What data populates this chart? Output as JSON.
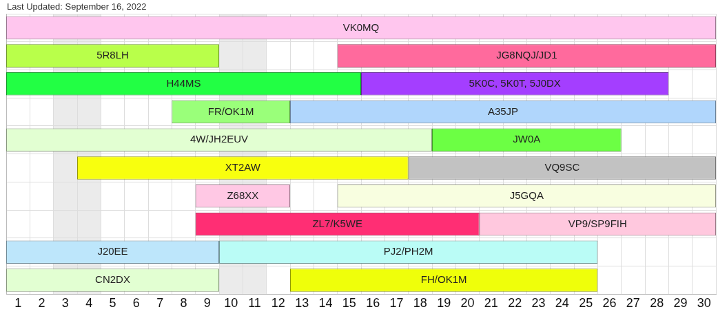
{
  "chart_data": {
    "type": "bar",
    "title": "Last Updated: September 16, 2022",
    "orientation": "horizontal",
    "categories": [
      null,
      null,
      null,
      null,
      null,
      null,
      null,
      null,
      null,
      null
    ],
    "series": [
      {
        "name": "VK0MQ",
        "color": "#ffc6ee",
        "base": [
          0.5,
          null,
          null,
          null,
          null,
          null,
          null,
          null,
          null,
          null
        ],
        "values": [
          30,
          null,
          null,
          null,
          null,
          null,
          null,
          null,
          null,
          null
        ]
      },
      {
        "name": "5R8LH",
        "color": "#b9ff4a",
        "base": [
          null,
          0.5,
          null,
          null,
          null,
          null,
          null,
          null,
          null,
          null
        ],
        "values": [
          null,
          9,
          null,
          null,
          null,
          null,
          null,
          null,
          null,
          null
        ]
      },
      {
        "name": "JG8NQJ/JD1",
        "color": "#ff6a9d",
        "base": [
          null,
          14.5,
          null,
          null,
          null,
          null,
          null,
          null,
          null,
          null
        ],
        "values": [
          null,
          16,
          null,
          null,
          null,
          null,
          null,
          null,
          null,
          null
        ]
      },
      {
        "name": "H44MS",
        "color": "#22ff44",
        "base": [
          null,
          null,
          0.5,
          null,
          null,
          null,
          null,
          null,
          null,
          null
        ],
        "values": [
          null,
          null,
          15,
          null,
          null,
          null,
          null,
          null,
          null,
          null
        ]
      },
      {
        "name": "5K0C, 5K0T, 5J0DX",
        "color": "#a43eff",
        "base": [
          null,
          null,
          15.5,
          null,
          null,
          null,
          null,
          null,
          null,
          null
        ],
        "values": [
          null,
          null,
          13,
          null,
          null,
          null,
          null,
          null,
          null,
          null
        ]
      },
      {
        "name": "FR/OK1M",
        "color": "#9aff7a",
        "base": [
          null,
          null,
          null,
          7.5,
          null,
          null,
          null,
          null,
          null,
          null
        ],
        "values": [
          null,
          null,
          null,
          5,
          null,
          null,
          null,
          null,
          null,
          null
        ]
      },
      {
        "name": "A35JP",
        "color": "#b0d6fc",
        "base": [
          null,
          null,
          null,
          12.5,
          null,
          null,
          null,
          null,
          null,
          null
        ],
        "values": [
          null,
          null,
          null,
          18,
          null,
          null,
          null,
          null,
          null,
          null
        ]
      },
      {
        "name": "4W/JH2EUV",
        "color": "#e2ffd2",
        "base": [
          null,
          null,
          null,
          null,
          0.5,
          null,
          null,
          null,
          null,
          null
        ],
        "values": [
          null,
          null,
          null,
          null,
          18,
          null,
          null,
          null,
          null,
          null
        ]
      },
      {
        "name": "JW0A",
        "color": "#6cff44",
        "base": [
          null,
          null,
          null,
          null,
          18.5,
          null,
          null,
          null,
          null,
          null
        ],
        "values": [
          null,
          null,
          null,
          null,
          8,
          null,
          null,
          null,
          null,
          null
        ]
      },
      {
        "name": "XT2AW",
        "color": "#f8ff0e",
        "base": [
          null,
          null,
          null,
          null,
          null,
          3.5,
          null,
          null,
          null,
          null
        ],
        "values": [
          null,
          null,
          null,
          null,
          null,
          14,
          null,
          null,
          null,
          null
        ]
      },
      {
        "name": "VQ9SC",
        "color": "#c2c2c2",
        "base": [
          null,
          null,
          null,
          null,
          null,
          17.5,
          null,
          null,
          null,
          null
        ],
        "values": [
          null,
          null,
          null,
          null,
          null,
          13,
          null,
          null,
          null,
          null
        ]
      },
      {
        "name": "Z68XX",
        "color": "#ffc8e4",
        "base": [
          null,
          null,
          null,
          null,
          null,
          null,
          8.5,
          null,
          null,
          null
        ],
        "values": [
          null,
          null,
          null,
          null,
          null,
          null,
          4,
          null,
          null,
          null
        ]
      },
      {
        "name": "J5GQA",
        "color": "#f8fee0",
        "base": [
          null,
          null,
          null,
          null,
          null,
          null,
          14.5,
          null,
          null,
          null
        ],
        "values": [
          null,
          null,
          null,
          null,
          null,
          null,
          16,
          null,
          null,
          null
        ]
      },
      {
        "name": "ZL7/K5WE",
        "color": "#ff2e74",
        "base": [
          null,
          null,
          null,
          null,
          null,
          null,
          null,
          8.5,
          null,
          null
        ],
        "values": [
          null,
          null,
          null,
          null,
          null,
          null,
          null,
          12,
          null,
          null
        ]
      },
      {
        "name": "VP9/SP9FIH",
        "color": "#ffc8de",
        "base": [
          null,
          null,
          null,
          null,
          null,
          null,
          null,
          20.5,
          null,
          null
        ],
        "values": [
          null,
          null,
          null,
          null,
          null,
          null,
          null,
          10,
          null,
          null
        ]
      },
      {
        "name": "J20EE",
        "color": "#bde6fb",
        "base": [
          null,
          null,
          null,
          null,
          null,
          null,
          null,
          null,
          0.5,
          null
        ],
        "values": [
          null,
          null,
          null,
          null,
          null,
          null,
          null,
          null,
          9,
          null
        ]
      },
      {
        "name": "PJ2/PH2M",
        "color": "#bafcf6",
        "base": [
          null,
          null,
          null,
          null,
          null,
          null,
          null,
          null,
          9.5,
          null
        ],
        "values": [
          null,
          null,
          null,
          null,
          null,
          null,
          null,
          null,
          16,
          null
        ]
      },
      {
        "name": "CN2DX",
        "color": "#e2ffd2",
        "base": [
          null,
          null,
          null,
          null,
          null,
          null,
          null,
          null,
          null,
          0.5
        ],
        "values": [
          null,
          null,
          null,
          null,
          null,
          null,
          null,
          null,
          null,
          9
        ]
      },
      {
        "name": "FH/OK1M",
        "color": "#efff0a",
        "base": [
          null,
          null,
          null,
          null,
          null,
          null,
          null,
          null,
          null,
          12.5
        ],
        "values": [
          null,
          null,
          null,
          null,
          null,
          null,
          null,
          null,
          null,
          13
        ]
      }
    ],
    "xlim": [
      0.5,
      30.5
    ],
    "xticks": [
      {
        "value": 0.5,
        "label": null
      },
      1,
      {
        "value": 1.5,
        "label": null
      },
      2,
      {
        "value": 2.5,
        "label": null
      },
      3,
      {
        "value": 3.5,
        "label": null
      },
      4,
      {
        "value": 4.5,
        "label": null
      },
      5,
      {
        "value": 5.5,
        "label": null
      },
      6,
      {
        "value": 6.5,
        "label": null
      },
      7,
      {
        "value": 7.5,
        "label": null
      },
      8,
      {
        "value": 8.5,
        "label": null
      },
      9,
      {
        "value": 9.5,
        "label": null
      },
      10,
      {
        "value": 10.5,
        "label": null
      },
      11,
      {
        "value": 11.5,
        "label": null
      },
      12,
      {
        "value": 12.5,
        "label": null
      },
      13,
      {
        "value": 13.5,
        "label": null
      },
      14,
      {
        "value": 14.5,
        "label": null
      },
      15,
      {
        "value": 15.5,
        "label": null
      },
      16,
      {
        "value": 16.5,
        "label": null
      },
      17,
      {
        "value": 17.5,
        "label": null
      },
      18,
      {
        "value": 18.5,
        "label": null
      },
      19,
      {
        "value": 19.5,
        "label": null
      },
      20,
      {
        "value": 20.5,
        "label": null
      },
      21,
      {
        "value": 21.5,
        "label": null
      },
      22,
      {
        "value": 22.5,
        "label": null
      },
      23,
      {
        "value": 23.5,
        "label": null
      },
      24,
      {
        "value": 24.5,
        "label": null
      },
      25,
      {
        "value": 25.5,
        "label": null
      },
      26,
      {
        "value": 26.5,
        "label": null
      },
      27,
      {
        "value": 27.5,
        "label": null
      },
      28,
      {
        "value": 28.5,
        "label": null
      },
      29,
      {
        "value": 29.5,
        "label": null
      },
      30,
      {
        "value": 30.5,
        "label": null
      }
    ],
    "bands": [
      {
        "axis": "x",
        "from": 2.5,
        "to": 4.5,
        "color": "#ebebeb"
      },
      {
        "axis": "x",
        "from": 9.5,
        "to": 11.5,
        "color": "#ebebeb"
      }
    ],
    "grid": true,
    "legend": false,
    "tick_labels": "x"
  }
}
